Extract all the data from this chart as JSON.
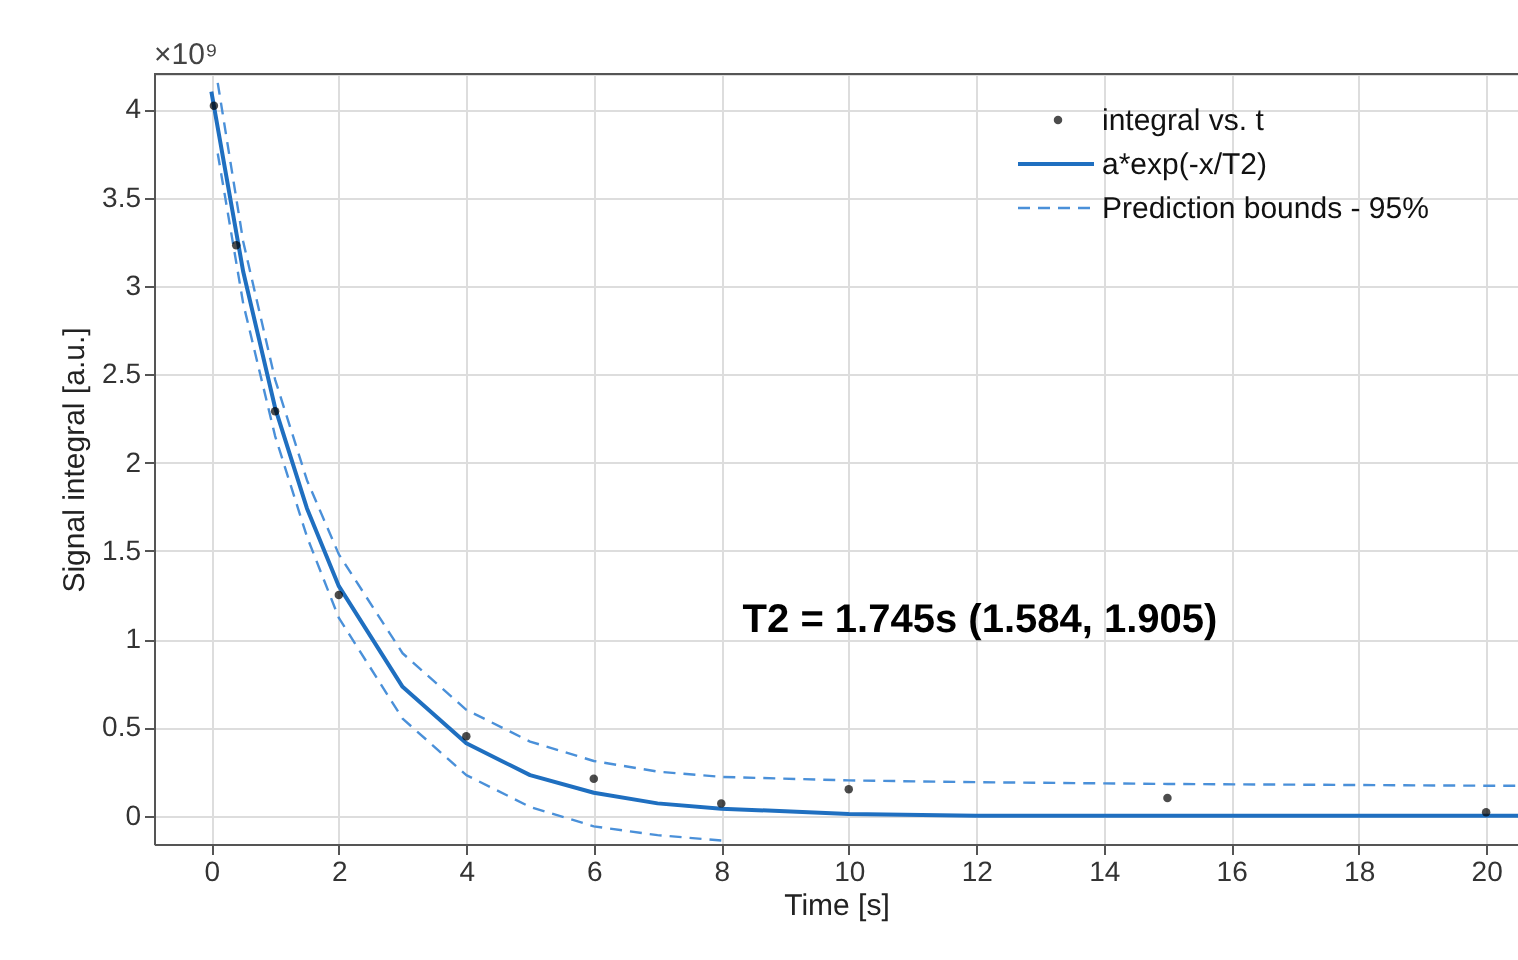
{
  "chart_data": {
    "type": "scatter",
    "xlabel": "Time [s]",
    "ylabel": "Signal integral [a.u.]",
    "xlim": [
      -0.9,
      20.5
    ],
    "ylim": [
      -0.16,
      4.2
    ],
    "xticks": [
      0,
      2,
      4,
      6,
      8,
      10,
      12,
      14,
      16,
      18,
      20
    ],
    "yticks": [
      0,
      0.5,
      1,
      1.5,
      2,
      2.5,
      3,
      3.5,
      4
    ],
    "grid": true,
    "legend": "top right",
    "annotations": [
      "×10⁹",
      "T2 = 1.745s  (1.584, 1.905)"
    ],
    "series": [
      {
        "name": "integral vs. t",
        "type": "scatter",
        "marker": "circle",
        "color": "#000000",
        "x": [
          0.04,
          0.39,
          1,
          2,
          4,
          6,
          8,
          10,
          15,
          20
        ],
        "values": [
          4.02,
          3.23,
          2.29,
          1.25,
          0.45,
          0.21,
          0.07,
          0.15,
          0.1,
          0.02
        ]
      },
      {
        "name": "a*exp(-x/T2)",
        "type": "line",
        "line_style": "solid",
        "color": "#1f6fc0",
        "x": [
          0,
          0.5,
          1,
          1.5,
          2,
          3,
          4,
          5,
          6,
          7,
          8,
          10,
          12,
          14,
          16,
          18,
          20,
          20.5
        ],
        "values": [
          4.1,
          3.08,
          2.31,
          1.74,
          1.3,
          0.73,
          0.41,
          0.23,
          0.13,
          0.07,
          0.04,
          0.01,
          0,
          0,
          0,
          0,
          0,
          0
        ]
      },
      {
        "name": "Prediction bounds - 95%",
        "type": "line",
        "line_style": "dashed",
        "color": "#4a90d9",
        "x": [
          0.1,
          0.5,
          1,
          1.5,
          2,
          3,
          4,
          5,
          6,
          7,
          8,
          10,
          12,
          15,
          20,
          20.5
        ],
        "values": [
          4.15,
          3.25,
          2.47,
          1.9,
          1.48,
          0.92,
          0.6,
          0.42,
          0.31,
          0.25,
          0.22,
          0.2,
          0.19,
          0.18,
          0.17,
          0.17
        ]
      },
      {
        "type": "line",
        "line_style": "dashed",
        "color": "#4a90d9",
        "x": [
          0.1,
          0.5,
          1,
          1.5,
          2,
          3,
          4,
          5,
          6,
          7,
          8
        ],
        "values": [
          3.75,
          2.9,
          2.15,
          1.58,
          1.12,
          0.55,
          0.23,
          0.05,
          -0.06,
          -0.11,
          -0.14
        ]
      }
    ]
  }
}
